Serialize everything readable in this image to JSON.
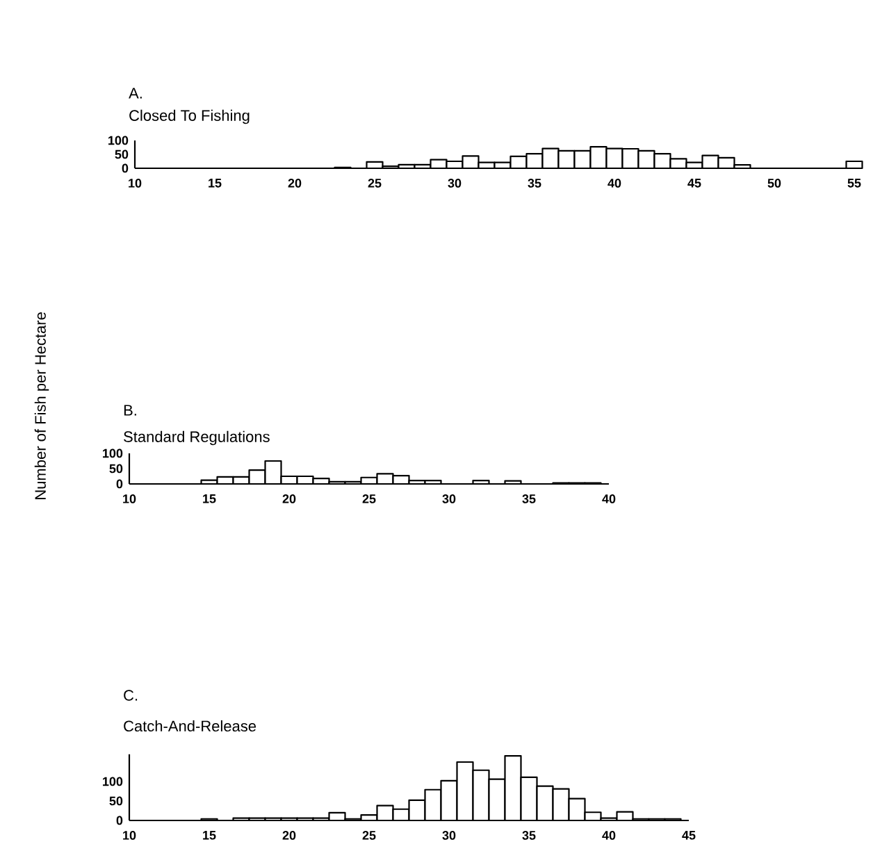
{
  "chart_data": [
    {
      "type": "histogram",
      "title": "A.",
      "subtitle": "Closed To Fishing",
      "color": "#000000",
      "bins": [
        22.5,
        23.5,
        24.5,
        25.5,
        26.5,
        27.5,
        28.5,
        29.5,
        30.5,
        31.5,
        32.5,
        33.5,
        34.5,
        35.5,
        36.5,
        37.5,
        38.5,
        39.5,
        40.5,
        41.5,
        42.5,
        43.5,
        44.5,
        45.5,
        46.5,
        47.5,
        48.5,
        49.5,
        50.5,
        51.5,
        52.5,
        53.5,
        54.5,
        55.5
      ],
      "values": [
        3,
        0,
        23,
        7,
        13,
        13,
        31,
        25,
        44,
        21,
        21,
        43,
        52,
        71,
        63,
        63,
        77,
        71,
        70,
        63,
        52,
        34,
        21,
        46,
        38,
        12,
        0,
        0,
        0,
        0,
        0,
        0,
        25
      ],
      "xlim": [
        10,
        55.5
      ],
      "ylim": [
        0,
        100
      ],
      "xticks": [
        10,
        15,
        20,
        25,
        30,
        35,
        40,
        45,
        50,
        55
      ],
      "yticks": [
        0,
        50,
        100
      ]
    },
    {
      "type": "histogram",
      "title": "B.",
      "subtitle": "Standard Regulations",
      "ylabel": "Number of Fish per Hectare",
      "color": "#000000",
      "bins": [
        14.5,
        15.5,
        16.5,
        17.5,
        18.5,
        19.5,
        20.5,
        21.5,
        22.5,
        23.5,
        24.5,
        25.5,
        26.5,
        27.5,
        28.5,
        29.5,
        30.5,
        31.5,
        32.5,
        33.5,
        34.5,
        35.5,
        36.5,
        37.5,
        38.5,
        39.5
      ],
      "values": [
        12,
        23,
        23,
        45,
        75,
        25,
        25,
        18,
        7,
        7,
        21,
        33,
        27,
        11,
        11,
        0,
        0,
        11,
        0,
        10,
        0,
        0,
        3,
        3,
        3
      ],
      "xlim": [
        10,
        40
      ],
      "ylim": [
        0,
        100
      ],
      "xticks": [
        10,
        15,
        20,
        25,
        30,
        35,
        40
      ],
      "yticks": [
        0,
        50,
        100
      ]
    },
    {
      "type": "histogram",
      "title": "C.",
      "subtitle": "Catch-And-Release",
      "color": "#000000",
      "bins": [
        14.5,
        15.5,
        16.5,
        17.5,
        18.5,
        19.5,
        20.5,
        21.5,
        22.5,
        23.5,
        24.5,
        25.5,
        26.5,
        27.5,
        28.5,
        29.5,
        30.5,
        31.5,
        32.5,
        33.5,
        34.5,
        35.5,
        36.5,
        37.5,
        38.5,
        39.5,
        40.5,
        41.5,
        42.5,
        43.5,
        44.5
      ],
      "values": [
        4,
        0,
        6,
        6,
        6,
        6,
        6,
        6,
        20,
        4,
        14,
        38,
        29,
        52,
        79,
        102,
        150,
        129,
        106,
        166,
        111,
        88,
        81,
        56,
        21,
        6,
        22,
        4,
        4,
        4
      ],
      "xlim": [
        10,
        45
      ],
      "ylim": [
        0,
        170
      ],
      "xticks": [
        10,
        15,
        20,
        25,
        30,
        35,
        40,
        45
      ],
      "yticks": [
        0,
        50,
        100
      ]
    }
  ]
}
